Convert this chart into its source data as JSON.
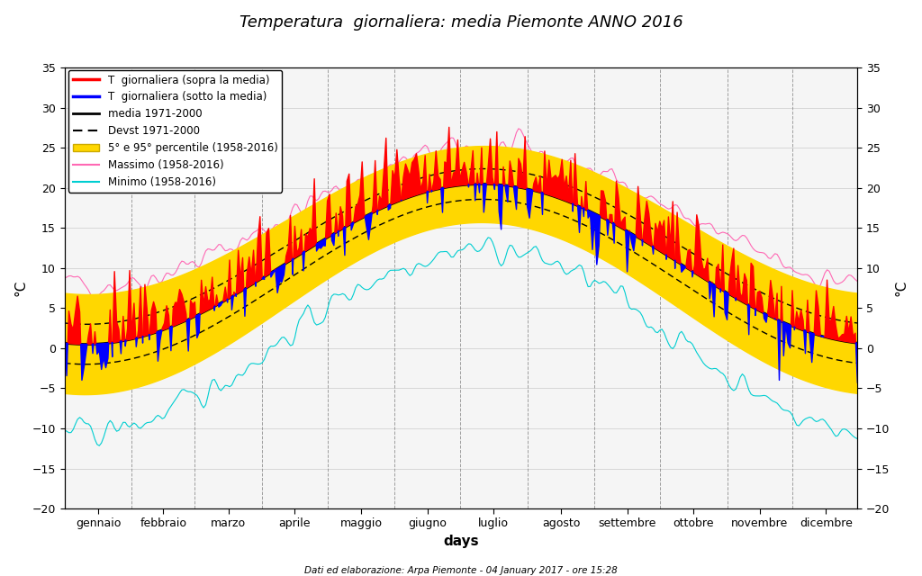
{
  "title": "Temperatura  giornaliera: media Piemonte ANNO 2016",
  "xlabel": "days",
  "ylabel_left": "°C",
  "ylabel_right": "°C",
  "footnote": "Dati ed elaborazione: Arpa Piemonte - 04 January 2017 - ore 15:28",
  "ylim": [
    -20,
    35
  ],
  "yticks": [
    -20,
    -15,
    -10,
    -5,
    0,
    5,
    10,
    15,
    20,
    25,
    30,
    35
  ],
  "month_labels": [
    "gennaio",
    "febbraio",
    "marzo",
    "aprile",
    "maggio",
    "giugno",
    "luglio",
    "agosto",
    "settembre",
    "ottobre",
    "novembre",
    "dicembre"
  ],
  "color_above": "#FF0000",
  "color_below": "#0000FF",
  "color_mean": "#000000",
  "color_devst": "#000000",
  "color_percentile": "#FFD700",
  "color_massimo": "#FF69B4",
  "color_minimo": "#00CED1",
  "legend_labels": [
    "T  giornaliera (sopra la media)",
    "T  giornaliera (sotto la media)",
    "media 1971-2000",
    "Devst 1971-2000",
    "5° e 95° percentile (1958-2016)",
    "Massimo (1958-2016)",
    "Minimo (1958-2016)"
  ]
}
